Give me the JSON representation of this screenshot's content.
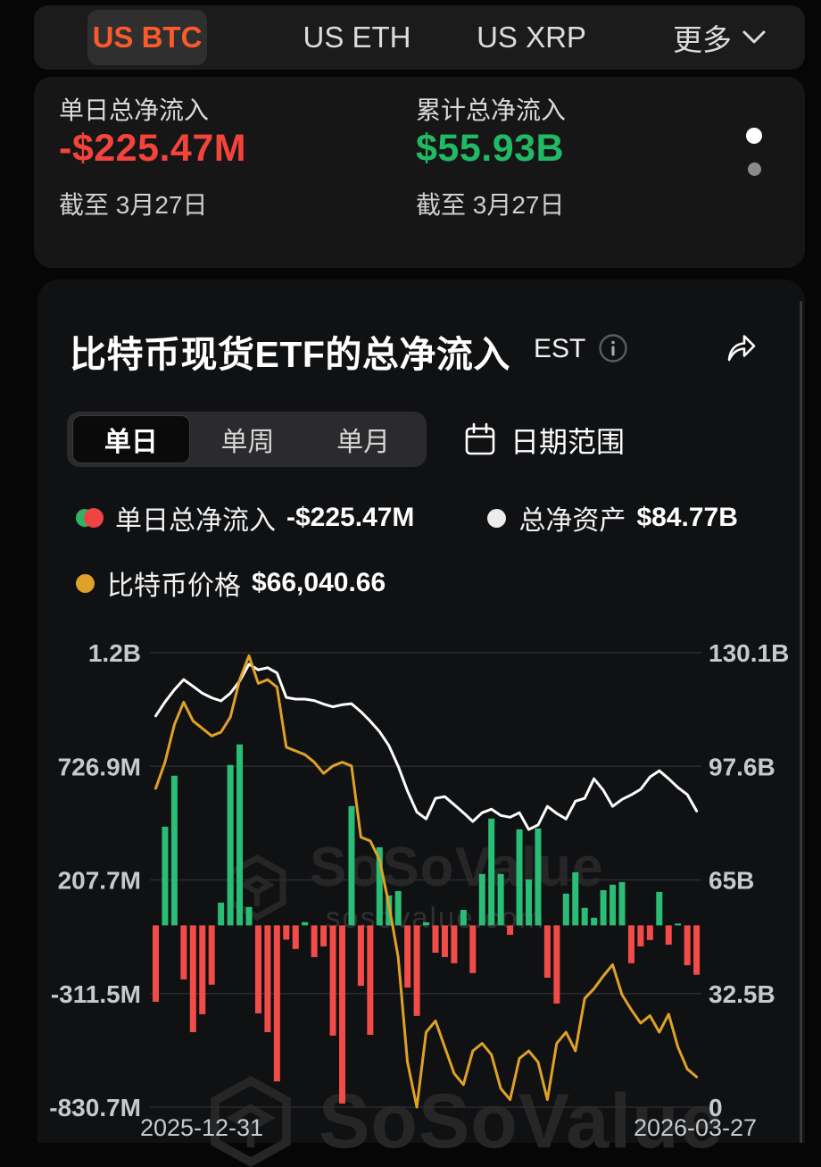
{
  "tabs": {
    "items": [
      {
        "label": "US BTC",
        "active": true
      },
      {
        "label": "US ETH",
        "active": false
      },
      {
        "label": "US XRP",
        "active": false
      }
    ],
    "more_label": "更多"
  },
  "stats": {
    "daily": {
      "label": "单日总净流入",
      "value": "-$225.47M",
      "as_of": "截至 3月27日"
    },
    "cumulative": {
      "label": "累计总净流入",
      "value": "$55.93B",
      "as_of": "截至 3月27日"
    }
  },
  "chart_header": {
    "title": "比特币现货ETF的总净流入",
    "timezone": "EST"
  },
  "controls": {
    "period_tabs": [
      "单日",
      "单周",
      "单月"
    ],
    "active_period": "单日",
    "date_range_label": "日期范围"
  },
  "legend": {
    "daily_label": "单日总净流入",
    "daily_value": "-$225.47M",
    "assets_label": "总净资产",
    "assets_value": "$84.77B",
    "price_label": "比特币价格",
    "price_value": "$66,040.66"
  },
  "watermark": {
    "brand": "SoSoValue",
    "domain": "sosovalue.com"
  },
  "colors": {
    "accent_orange": "#fb5a2b",
    "stat_red": "#f4433a",
    "stat_green": "#22b964",
    "bar_green": "#2abd76",
    "bar_red": "#f24c49",
    "line_white": "#ffffff",
    "line_orange": "#dfa128",
    "grid": "#2b2b2d",
    "axis_text": "#c6cacd"
  },
  "chart_data": {
    "type": "combo",
    "x_start": "2025-12-31",
    "x_end": "2026-03-27",
    "left_axis": {
      "labels": [
        "1.2B",
        "726.9M",
        "207.7M",
        "-311.5M",
        "-830.7M"
      ],
      "values_m": [
        1246.1,
        726.9,
        207.7,
        -311.5,
        -830.7
      ]
    },
    "right_axis": {
      "labels": [
        "130.1B",
        "97.6B",
        "65B",
        "32.5B",
        "0"
      ],
      "values_b": [
        130.1,
        97.6,
        65,
        32.5,
        0
      ]
    },
    "price_axis_range_k": [
      62,
      122.6
    ],
    "series": [
      {
        "name": "单日总净流入",
        "type": "bar",
        "unit": "$M",
        "color_pos": "#2abd76",
        "color_neg": "#f24c49",
        "values": [
          -349,
          451,
          684,
          -247,
          -488,
          -406,
          -271,
          104,
          733,
          827,
          84,
          -402,
          -488,
          -713,
          -65,
          -108,
          15,
          -145,
          -96,
          -504,
          -814,
          545,
          -276,
          -500,
          357,
          137,
          157,
          -284,
          -414,
          14,
          -125,
          -145,
          -173,
          71,
          -218,
          235,
          488,
          235,
          -43,
          439,
          210,
          443,
          -239,
          -357,
          145,
          243,
          80,
          35,
          161,
          186,
          198,
          -173,
          -96,
          -67,
          153,
          -88,
          6,
          -182,
          -225.47
        ]
      },
      {
        "name": "总净资产",
        "type": "line",
        "unit": "$B",
        "color": "#ffffff",
        "values": [
          112,
          116,
          119.5,
          122.4,
          120.5,
          118.5,
          117.2,
          116.3,
          118.5,
          122,
          126.8,
          125.2,
          125.8,
          124.3,
          117.3,
          116.8,
          116.8,
          116.4,
          115.4,
          114.6,
          115.2,
          115.5,
          113.2,
          110.5,
          107.5,
          103.5,
          97.6,
          90.5,
          84.5,
          82.5,
          88.4,
          88.9,
          86.6,
          84.3,
          81.8,
          84.3,
          85.3,
          83.5,
          83,
          84.3,
          79.5,
          80.8,
          86.1,
          84.1,
          82.5,
          87.6,
          88.4,
          94,
          90.7,
          86.1,
          88.1,
          89.4,
          91,
          94.5,
          96.3,
          94,
          91.5,
          89.5,
          84.77
        ]
      },
      {
        "name": "比特币价格",
        "type": "line",
        "unit": "$K",
        "color": "#dfa128",
        "values": [
          104.5,
          108,
          113,
          116,
          113.5,
          112.5,
          111.5,
          112,
          114,
          119,
          122.2,
          118.5,
          119,
          118,
          110,
          109.5,
          109,
          108,
          106.5,
          107.5,
          108,
          107.5,
          98,
          97.5,
          95,
          89,
          82,
          68,
          62,
          72,
          73.5,
          70,
          66.5,
          65,
          69.5,
          70.5,
          69,
          64.5,
          63,
          68.5,
          69.5,
          68,
          63,
          70.5,
          72,
          69.5,
          76.5,
          77.8,
          79.5,
          81,
          77,
          75,
          73.2,
          74.2,
          72,
          74.4,
          70,
          67.1,
          66.04
        ]
      }
    ]
  }
}
